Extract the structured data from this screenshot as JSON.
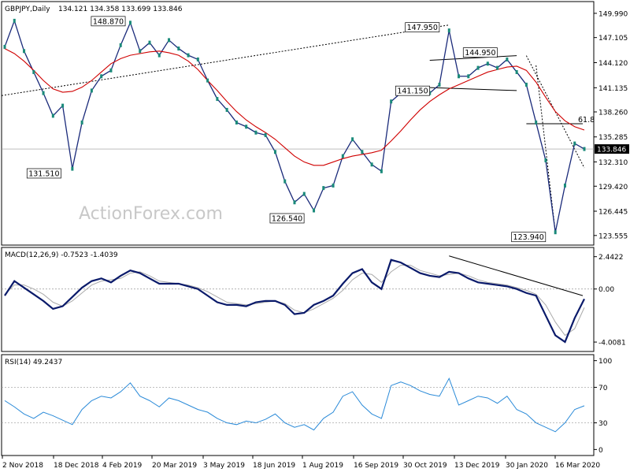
{
  "chart_data": {
    "instrument": "GBPJPY,Daily",
    "ohlc": "134.121 134.358 133.699 133.846",
    "watermark": "ActionForex.com",
    "x_dates": [
      "2 Nov 2018",
      "18 Dec 2018",
      "4 Feb 2019",
      "20 Mar 2019",
      "3 May 2019",
      "18 Jun 2019",
      "1 Aug 2019",
      "16 Sep 2019",
      "30 Oct 2019",
      "13 Dec 2019",
      "30 Jan 2020",
      "16 Mar 2020"
    ],
    "price": {
      "type": "line",
      "ylim": [
        122.6,
        151.2
      ],
      "y_ticks": [
        "149.990",
        "147.105",
        "144.120",
        "141.135",
        "138.260",
        "135.285",
        "132.310",
        "129.420",
        "126.445",
        "123.555"
      ],
      "last_price_label": "133.846",
      "last_price": 133.846,
      "close": [
        146.0,
        149.1,
        145.5,
        143.0,
        140.5,
        137.8,
        139.0,
        131.5,
        137.0,
        140.8,
        142.5,
        143.2,
        146.2,
        148.87,
        145.5,
        146.5,
        145.0,
        146.8,
        145.8,
        145.0,
        144.5,
        142.0,
        139.8,
        138.5,
        137.0,
        136.5,
        135.8,
        135.5,
        133.5,
        130.0,
        127.5,
        128.5,
        126.54,
        129.2,
        129.5,
        133.0,
        135.0,
        133.5,
        132.0,
        131.2,
        139.5,
        140.5,
        141.0,
        140.5,
        140.5,
        141.5,
        147.95,
        142.5,
        142.5,
        143.5,
        144.0,
        143.5,
        144.5,
        143.0,
        141.5,
        137.0,
        132.5,
        123.94,
        129.5,
        134.5,
        133.846
      ],
      "ma": [
        145.8,
        145.2,
        144.3,
        143.2,
        142.0,
        141.0,
        140.6,
        140.7,
        141.2,
        142.0,
        143.0,
        144.0,
        144.6,
        145.0,
        145.2,
        145.4,
        145.5,
        145.3,
        145.0,
        144.3,
        143.3,
        142.0,
        140.8,
        139.5,
        138.3,
        137.3,
        136.5,
        135.8,
        135.0,
        134.0,
        133.0,
        132.3,
        131.9,
        131.9,
        132.3,
        132.7,
        133.0,
        133.2,
        133.4,
        133.7,
        134.8,
        136.0,
        137.3,
        138.5,
        139.5,
        140.3,
        141.0,
        141.5,
        142.0,
        142.5,
        143.0,
        143.3,
        143.6,
        143.7,
        143.2,
        141.8,
        140.0,
        138.3,
        137.2,
        136.5,
        136.1
      ],
      "annotations": [
        {
          "label": "148.870",
          "index": 13,
          "value": 148.87
        },
        {
          "label": "131.510",
          "index": 7,
          "value": 131.51
        },
        {
          "label": "126.540",
          "index": 32,
          "value": 126.54
        },
        {
          "label": "147.950",
          "index": 46,
          "value": 147.95
        },
        {
          "label": "144.950",
          "index": 52,
          "value": 144.95
        },
        {
          "label": "141.150",
          "index": 45,
          "value": 141.15
        },
        {
          "label": "123.940",
          "index": 57,
          "value": 123.94
        },
        {
          "label": "61.8",
          "value": 136.85
        }
      ]
    },
    "macd": {
      "title": "MACD(12,26,9) -0.7523 -1.4039",
      "ylim": [
        -4.6,
        2.9
      ],
      "y_ticks": [
        "2.4422",
        "0.00",
        "-4.0081"
      ],
      "macd": [
        -0.5,
        0.6,
        0.1,
        -0.4,
        -0.9,
        -1.5,
        -1.3,
        -0.6,
        0.1,
        0.6,
        0.8,
        0.5,
        1.0,
        1.4,
        1.2,
        0.8,
        0.4,
        0.4,
        0.4,
        0.2,
        0.0,
        -0.5,
        -1.0,
        -1.2,
        -1.2,
        -1.3,
        -1.0,
        -0.9,
        -0.9,
        -1.2,
        -1.9,
        -1.8,
        -1.2,
        -0.9,
        -0.5,
        0.4,
        1.2,
        1.5,
        0.5,
        0.0,
        2.2,
        2.0,
        1.6,
        1.2,
        1.0,
        0.9,
        1.3,
        1.2,
        0.8,
        0.5,
        0.4,
        0.3,
        0.2,
        0.0,
        -0.3,
        -0.5,
        -2.0,
        -3.5,
        -4.0,
        -2.2,
        -0.75
      ],
      "signal": [
        -0.4,
        0.3,
        0.3,
        0.0,
        -0.4,
        -1.0,
        -1.3,
        -0.9,
        -0.3,
        0.3,
        0.6,
        0.7,
        0.8,
        1.2,
        1.3,
        1.0,
        0.6,
        0.5,
        0.4,
        0.3,
        0.1,
        -0.2,
        -0.6,
        -1.0,
        -1.1,
        -1.2,
        -1.1,
        -1.0,
        -0.9,
        -1.1,
        -1.6,
        -1.8,
        -1.5,
        -1.1,
        -0.7,
        -0.1,
        0.7,
        1.2,
        1.1,
        0.5,
        1.3,
        1.8,
        1.8,
        1.4,
        1.2,
        1.0,
        1.1,
        1.2,
        1.0,
        0.7,
        0.5,
        0.4,
        0.3,
        0.1,
        -0.1,
        -0.4,
        -1.2,
        -2.5,
        -3.5,
        -3.0,
        -1.4
      ]
    },
    "rsi": {
      "title": "RSI(14) 49.2437",
      "ylim": [
        -5,
        105
      ],
      "y_ticks": [
        "100",
        "70",
        "30",
        "0"
      ],
      "levels": [
        70,
        30
      ],
      "values": [
        55,
        48,
        40,
        35,
        42,
        38,
        33,
        28,
        45,
        55,
        60,
        58,
        65,
        75,
        60,
        55,
        48,
        58,
        55,
        50,
        45,
        42,
        35,
        30,
        28,
        32,
        30,
        34,
        40,
        30,
        25,
        28,
        22,
        35,
        42,
        60,
        65,
        50,
        40,
        35,
        72,
        76,
        72,
        66,
        62,
        60,
        80,
        50,
        55,
        60,
        58,
        52,
        60,
        45,
        40,
        30,
        25,
        20,
        30,
        45,
        49.2437
      ]
    }
  }
}
